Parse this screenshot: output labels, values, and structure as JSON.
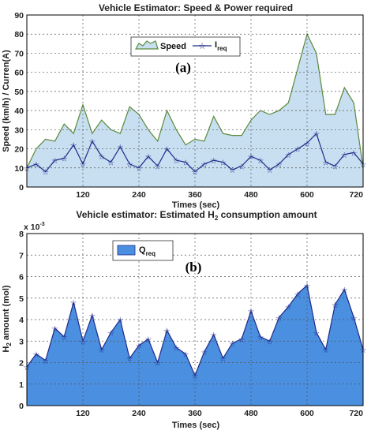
{
  "chart_data": [
    {
      "type": "area",
      "title": "Vehicle Estimator: Speed & Power required",
      "panel_label": "(a)",
      "xlabel": "Times (sec)",
      "ylabel": "Speed (km/h) / Curren(A)",
      "xlim": [
        0,
        720
      ],
      "ylim": [
        0,
        90
      ],
      "xticks": [
        "120",
        "240",
        "360",
        "480",
        "600",
        "720"
      ],
      "yticks": [
        "0",
        "10",
        "20",
        "30",
        "40",
        "50",
        "60",
        "70",
        "80",
        "90"
      ],
      "grid": true,
      "legend_position": "top-center",
      "series": [
        {
          "name": "Speed",
          "style": "filled-area",
          "color": "#c7dff0",
          "edge_color": "#5a8a3a",
          "x": [
            0,
            20,
            40,
            60,
            80,
            100,
            120,
            140,
            160,
            180,
            200,
            220,
            240,
            260,
            280,
            300,
            320,
            340,
            360,
            380,
            400,
            420,
            440,
            460,
            480,
            500,
            520,
            540,
            560,
            580,
            600,
            620,
            640,
            660,
            680,
            700,
            720
          ],
          "values": [
            10,
            20,
            25,
            24,
            33,
            28,
            43,
            28,
            35,
            30,
            28,
            42,
            38,
            30,
            24,
            40,
            30,
            22,
            25,
            24,
            37,
            28,
            27,
            27,
            35,
            40,
            38,
            40,
            44,
            62,
            80,
            70,
            38,
            38,
            52,
            44,
            10
          ]
        },
        {
          "name": "I",
          "name_subscript": "req",
          "style": "line-star-markers",
          "color": "#1f2a8a",
          "x": [
            0,
            20,
            40,
            60,
            80,
            100,
            120,
            140,
            160,
            180,
            200,
            220,
            240,
            260,
            280,
            300,
            320,
            340,
            360,
            380,
            400,
            420,
            440,
            460,
            480,
            500,
            520,
            540,
            560,
            580,
            600,
            620,
            640,
            660,
            680,
            700,
            720
          ],
          "values": [
            10,
            12,
            8,
            14,
            15,
            22,
            12,
            24,
            16,
            13,
            21,
            12,
            10,
            16,
            11,
            20,
            14,
            13,
            8,
            12,
            14,
            13,
            9,
            11,
            16,
            14,
            9,
            12,
            17,
            20,
            23,
            28,
            13,
            11,
            17,
            18,
            12
          ]
        }
      ]
    },
    {
      "type": "area",
      "title": "Vehicle estimator: Estimated H2 consumption amount",
      "title_main": "Vehicle estimator: Estimated H",
      "title_subscript": "2",
      "title_tail": " consumption amount",
      "panel_label": "(b)",
      "xlabel": "Times (sec)",
      "ylabel": "H2 amount (mol)",
      "ylabel_parts": [
        "H",
        "2",
        " amount (mol)"
      ],
      "y_multiplier": "x 10",
      "y_multiplier_exponent": "-3",
      "xlim": [
        0,
        720
      ],
      "ylim": [
        0,
        8
      ],
      "xticks": [
        "120",
        "240",
        "360",
        "480",
        "600",
        "720"
      ],
      "yticks": [
        "0",
        "1",
        "2",
        "3",
        "4",
        "5",
        "6",
        "7",
        "8"
      ],
      "grid": true,
      "legend_position": "top-left",
      "series": [
        {
          "name": "Q",
          "name_subscript": "req",
          "style": "filled-area-star-markers",
          "color": "#4a8fe0",
          "edge_color": "#1f2a8a",
          "x": [
            0,
            20,
            40,
            60,
            80,
            100,
            120,
            140,
            160,
            180,
            200,
            220,
            240,
            260,
            280,
            300,
            320,
            340,
            360,
            380,
            400,
            420,
            440,
            460,
            480,
            500,
            520,
            540,
            560,
            580,
            600,
            620,
            640,
            660,
            680,
            700,
            720
          ],
          "values": [
            1.8,
            2.4,
            2.1,
            3.6,
            3.2,
            4.8,
            3.0,
            4.2,
            2.6,
            3.4,
            4.0,
            2.2,
            2.8,
            3.1,
            2.0,
            3.5,
            2.7,
            2.4,
            1.4,
            2.5,
            3.3,
            2.2,
            2.9,
            3.1,
            4.4,
            3.2,
            3.0,
            4.1,
            4.6,
            5.2,
            5.6,
            3.4,
            2.6,
            4.7,
            5.4,
            4.1,
            2.6
          ]
        }
      ]
    }
  ]
}
